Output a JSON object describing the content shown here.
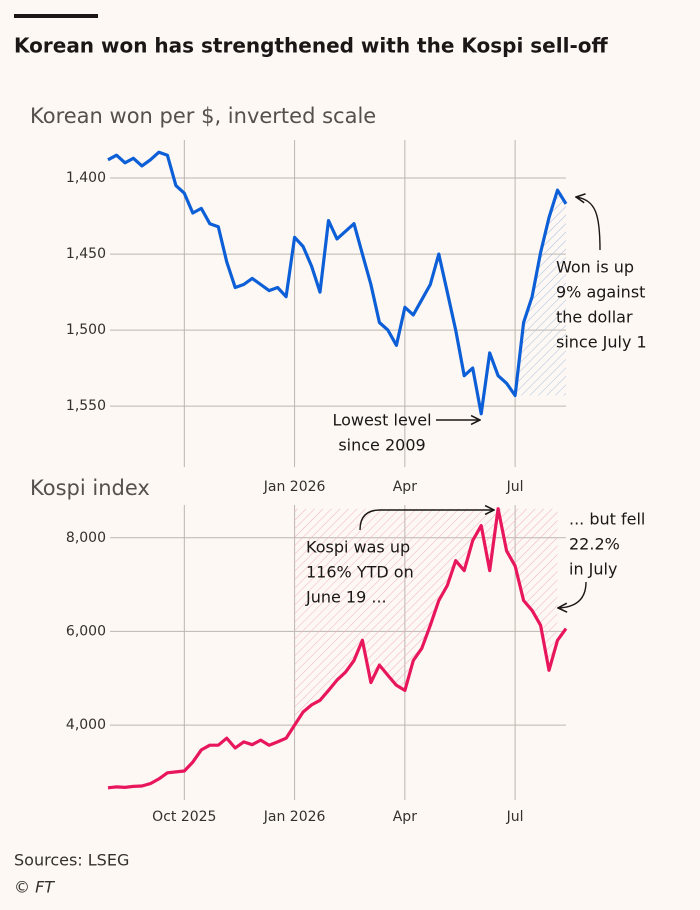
{
  "title": "Korean won has strengthened with the Kospi sell-off",
  "source": "Sources: LSEG",
  "credit": "© FT",
  "chart_data": [
    {
      "type": "line",
      "subtitle": "Korean won per $, inverted scale",
      "color": "#0d5fd8",
      "categories": [
        null,
        null,
        null,
        null,
        null,
        null,
        null,
        null,
        null,
        null,
        null,
        null,
        null,
        null,
        null,
        null,
        null,
        null,
        null,
        null,
        null,
        null,
        "Jan 2026",
        null,
        null,
        null,
        null,
        null,
        null,
        null,
        null,
        null,
        null,
        null,
        null,
        "Apr",
        null,
        null,
        null,
        null,
        null,
        null,
        null,
        null,
        null,
        null,
        null,
        null,
        "Jul",
        null,
        null,
        null,
        null,
        null,
        null
      ],
      "values": [
        1388,
        1385,
        1390,
        1387,
        1392,
        1388,
        1383,
        1385,
        1405,
        1410,
        1423,
        1420,
        1430,
        1432,
        1455,
        1472,
        1470,
        1466,
        1470,
        1474,
        1472,
        1478,
        1439,
        1445,
        1458,
        1475,
        1428,
        1440,
        1435,
        1430,
        1450,
        1470,
        1495,
        1500,
        1510,
        1485,
        1490,
        1480,
        1470,
        1450,
        1475,
        1500,
        1530,
        1525,
        1555,
        1515,
        1530,
        1535,
        1543,
        1495,
        1478,
        1449,
        1426,
        1408,
        1417
      ],
      "ylim": [
        1590,
        1375
      ],
      "yticks": [
        {
          "value": 1400,
          "label": "1,400"
        },
        {
          "value": 1450,
          "label": "1,450"
        },
        {
          "value": 1500,
          "label": "1,500"
        },
        {
          "value": 1550,
          "label": "1,550"
        }
      ],
      "annotations": [
        [
          "Won is up",
          "9% against",
          "the dollar",
          "since July 1"
        ],
        [
          "Lowest level",
          "since 2009"
        ]
      ]
    },
    {
      "type": "line",
      "subtitle": "Kospi index",
      "color": "#e8175d",
      "categories": [
        null,
        null,
        null,
        null,
        null,
        null,
        null,
        null,
        null,
        "Oct 2025",
        null,
        null,
        null,
        null,
        null,
        null,
        null,
        null,
        null,
        null,
        null,
        null,
        "Jan 2026",
        null,
        null,
        null,
        null,
        null,
        null,
        null,
        null,
        null,
        null,
        null,
        null,
        "Apr",
        null,
        null,
        null,
        null,
        null,
        null,
        null,
        null,
        null,
        null,
        null,
        null,
        "Jul",
        null,
        null,
        null,
        null,
        null,
        null
      ],
      "values": [
        2660,
        2680,
        2670,
        2690,
        2700,
        2750,
        2850,
        2980,
        3000,
        3020,
        3210,
        3470,
        3570,
        3570,
        3720,
        3510,
        3640,
        3580,
        3680,
        3570,
        3640,
        3720,
        4000,
        4280,
        4430,
        4530,
        4740,
        4960,
        5130,
        5380,
        5810,
        4910,
        5280,
        5060,
        4850,
        4740,
        5380,
        5640,
        6130,
        6660,
        6980,
        7510,
        7300,
        7940,
        8260,
        7300,
        8620,
        7720,
        7400,
        6660,
        6450,
        6130,
        5170,
        5810,
        6060
      ],
      "ylim": [
        2400,
        8700
      ],
      "yticks": [
        {
          "value": 4000,
          "label": "4,000"
        },
        {
          "value": 6000,
          "label": "6,000"
        },
        {
          "value": 8000,
          "label": "8,000"
        }
      ],
      "annotations": [
        [
          "Kospi was up",
          "116% YTD on",
          "June 19 ..."
        ],
        [
          "... but fell",
          "22.2%",
          "in July"
        ]
      ]
    }
  ]
}
